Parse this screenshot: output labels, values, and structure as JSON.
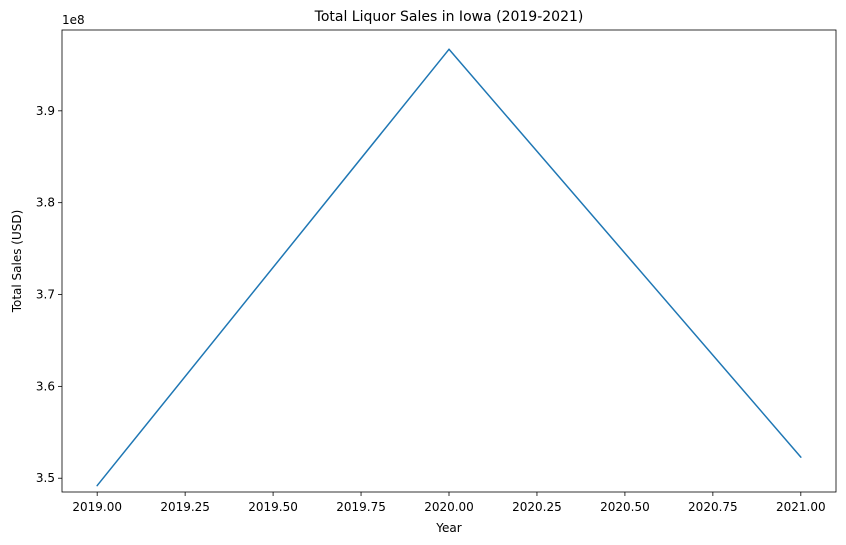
{
  "chart_data": {
    "type": "line",
    "title": "Total Liquor Sales in Iowa (2019-2021)",
    "xlabel": "Year",
    "ylabel": "Total Sales (USD)",
    "offset_label": "1e8",
    "xlim": [
      2018.9,
      2021.1
    ],
    "ylim": [
      348500000,
      398800000
    ],
    "x_ticks": [
      2019.0,
      2019.25,
      2019.5,
      2019.75,
      2020.0,
      2020.25,
      2020.5,
      2020.75,
      2021.0
    ],
    "x_tick_labels": [
      "2019.00",
      "2019.25",
      "2019.50",
      "2019.75",
      "2020.00",
      "2020.25",
      "2020.50",
      "2020.75",
      "2021.00"
    ],
    "y_ticks": [
      350000000,
      360000000,
      370000000,
      380000000,
      390000000
    ],
    "y_tick_labels": [
      "3.5",
      "3.6",
      "3.7",
      "3.8",
      "3.9"
    ],
    "grid": false,
    "series": [
      {
        "x": [
          2019,
          2020,
          2021
        ],
        "values": [
          349200000,
          396700000,
          352300000
        ],
        "color": "#1f77b4"
      }
    ]
  }
}
